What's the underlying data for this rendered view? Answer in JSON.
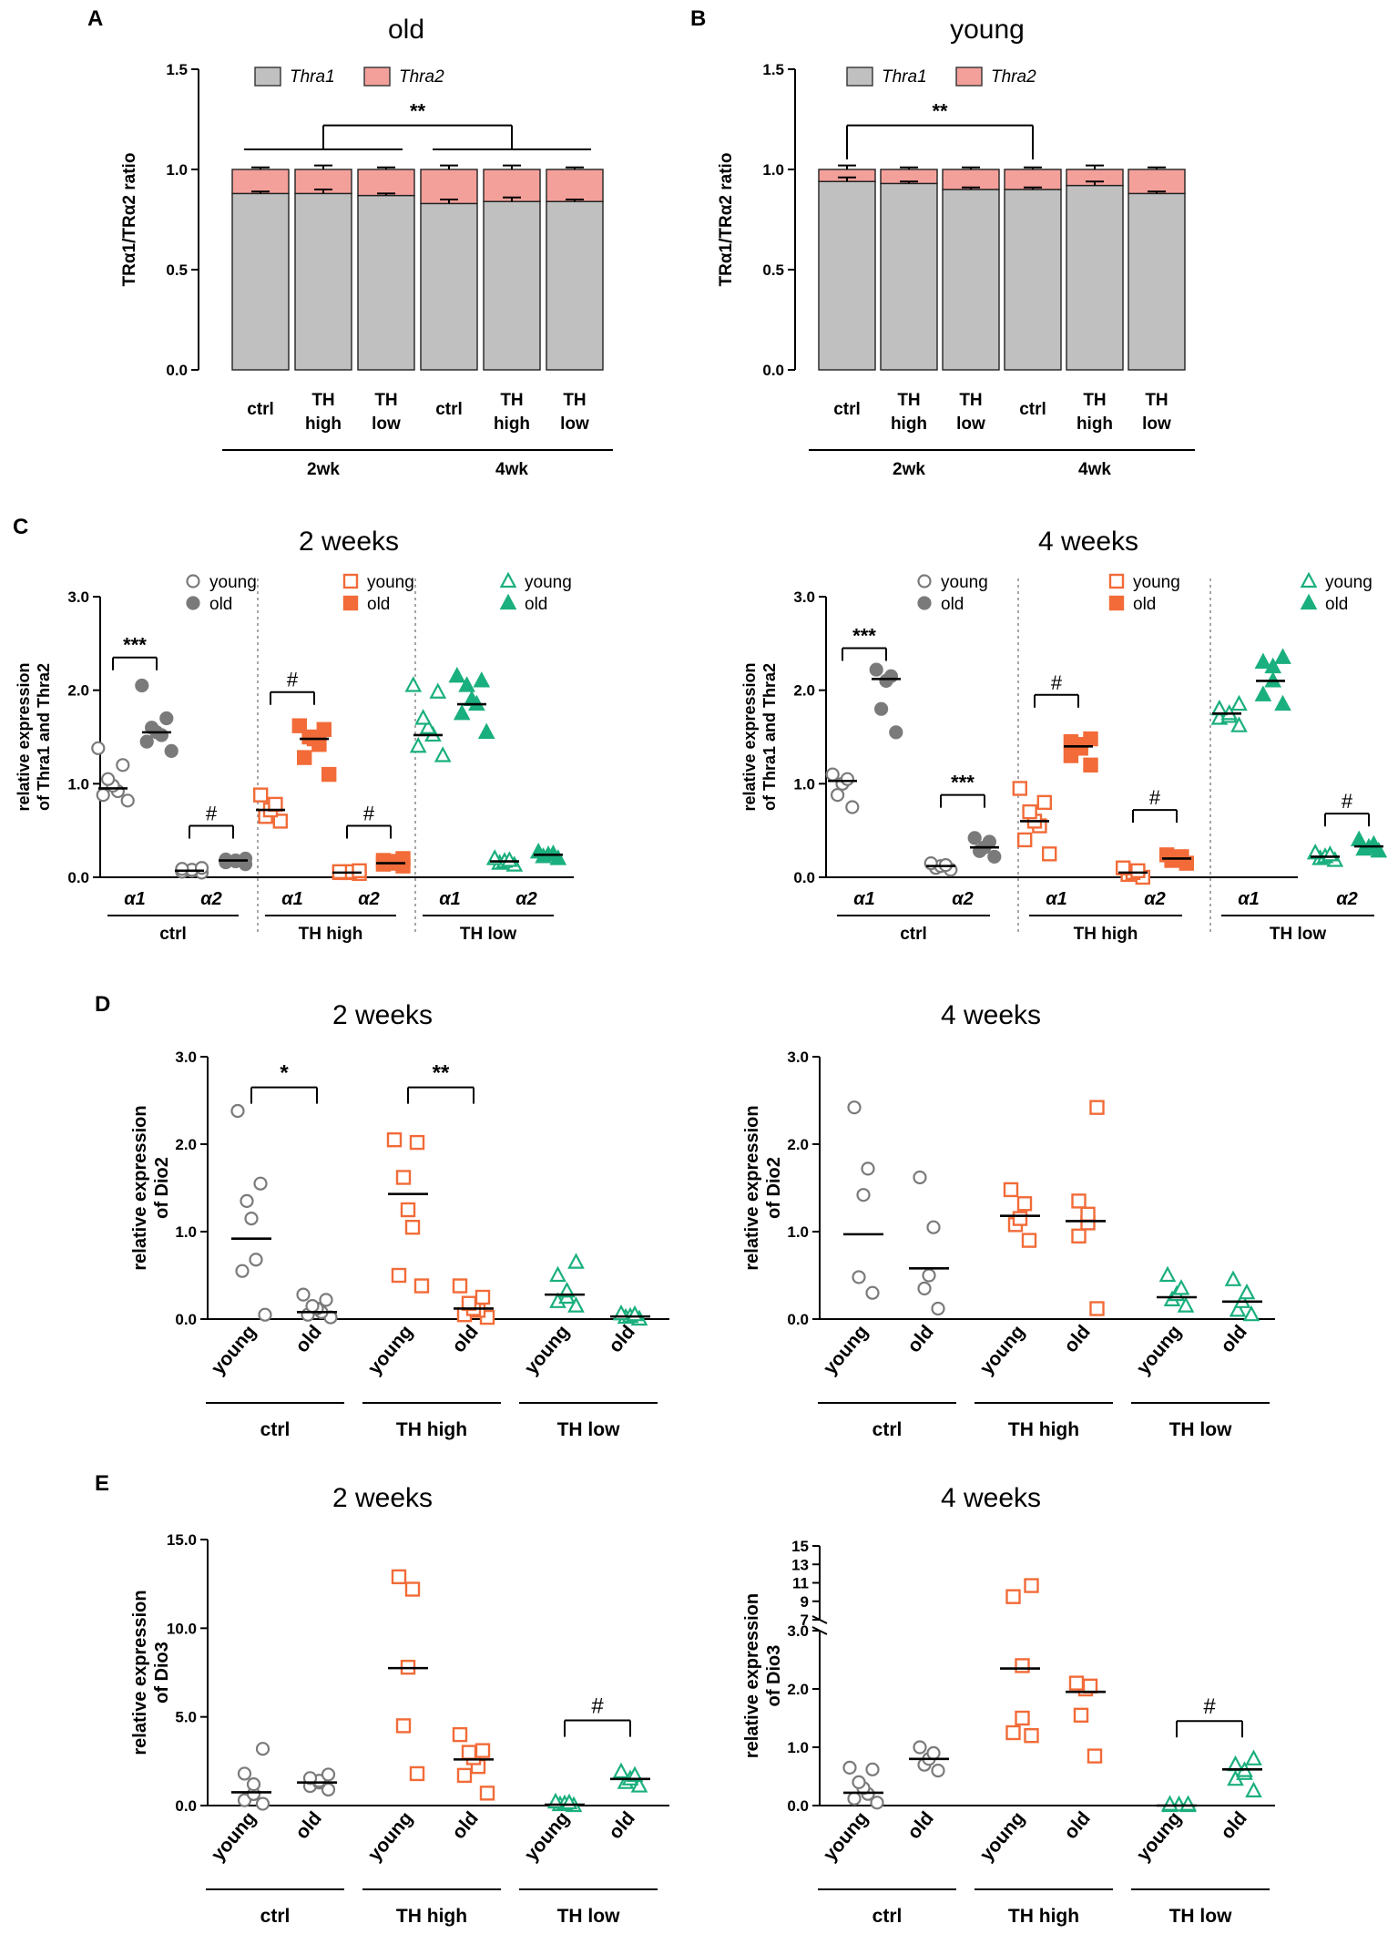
{
  "colors": {
    "grey": "#7a7a7a",
    "orange": "#f26b38",
    "green": "#1aaf7e",
    "thra1": "#c0c0c0",
    "thra2": "#f4a09a",
    "black": "#000000"
  },
  "panels": {
    "A": "A",
    "B": "B",
    "C": "C",
    "D": "D",
    "E": "E"
  },
  "chart_data": [
    {
      "id": "A",
      "type": "bar",
      "stacked": true,
      "title": "old",
      "ylabel": "TRα1/TRα2 ratio",
      "ylim": [
        0,
        1.5
      ],
      "yticks": [
        "0.0",
        "0.5",
        "1.0",
        "1.5"
      ],
      "categories": [
        "ctrl",
        "TH high",
        "TH low",
        "ctrl",
        "TH high",
        "TH low"
      ],
      "groups": [
        "2wk",
        "4wk"
      ],
      "legend": [
        "Thra1",
        "Thra2"
      ],
      "series": [
        {
          "name": "Thra1",
          "values": [
            0.88,
            0.88,
            0.87,
            0.83,
            0.84,
            0.84
          ]
        },
        {
          "name": "Thra2",
          "values": [
            0.12,
            0.12,
            0.13,
            0.17,
            0.16,
            0.16
          ]
        }
      ],
      "errors_thra1": [
        0.01,
        0.02,
        0.01,
        0.02,
        0.02,
        0.01
      ],
      "errors_total": [
        0.01,
        0.02,
        0.01,
        0.02,
        0.02,
        0.01
      ],
      "annotation": "**"
    },
    {
      "id": "B",
      "type": "bar",
      "stacked": true,
      "title": "young",
      "ylabel": "TRα1/TRα2 ratio",
      "ylim": [
        0,
        1.5
      ],
      "yticks": [
        "0.0",
        "0.5",
        "1.0",
        "1.5"
      ],
      "categories": [
        "ctrl",
        "TH high",
        "TH low",
        "ctrl",
        "TH high",
        "TH low"
      ],
      "groups": [
        "2wk",
        "4wk"
      ],
      "legend": [
        "Thra1",
        "Thra2"
      ],
      "series": [
        {
          "name": "Thra1",
          "values": [
            0.94,
            0.93,
            0.9,
            0.9,
            0.92,
            0.88
          ]
        },
        {
          "name": "Thra2",
          "values": [
            0.06,
            0.07,
            0.1,
            0.1,
            0.08,
            0.12
          ]
        }
      ],
      "errors_thra1": [
        0.02,
        0.01,
        0.01,
        0.01,
        0.02,
        0.01
      ],
      "errors_total": [
        0.02,
        0.01,
        0.01,
        0.01,
        0.02,
        0.01
      ],
      "annotation": "**"
    },
    {
      "id": "C-2",
      "type": "scatter",
      "title": "2 weeks",
      "ylabel_lines": [
        "relative expression",
        "of Thra1 and Thra2"
      ],
      "ylim": [
        0,
        3
      ],
      "yticks": [
        "0.0",
        "1.0",
        "2.0",
        "3.0"
      ],
      "groups": [
        "ctrl",
        "TH high",
        "TH low"
      ],
      "xticks": [
        "α1",
        "α2"
      ],
      "legend_young": "young",
      "legend_old": "old",
      "points": [
        {
          "grp": 0,
          "sub": 0,
          "old": false,
          "vals": [
            0.82,
            0.88,
            0.92,
            0.98,
            1.05,
            1.2,
            1.38
          ],
          "median": 0.95
        },
        {
          "grp": 0,
          "sub": 0,
          "old": true,
          "vals": [
            1.35,
            1.45,
            1.52,
            1.55,
            1.6,
            1.7,
            2.05
          ],
          "median": 1.55
        },
        {
          "grp": 0,
          "sub": 1,
          "old": false,
          "vals": [
            0.05,
            0.06,
            0.07,
            0.08,
            0.09,
            0.1
          ],
          "median": 0.07
        },
        {
          "grp": 0,
          "sub": 1,
          "old": true,
          "vals": [
            0.14,
            0.16,
            0.17,
            0.18,
            0.19,
            0.2
          ],
          "median": 0.18
        },
        {
          "grp": 1,
          "sub": 0,
          "old": false,
          "vals": [
            0.6,
            0.65,
            0.72,
            0.78,
            0.88
          ],
          "median": 0.72
        },
        {
          "grp": 1,
          "sub": 0,
          "old": true,
          "vals": [
            1.1,
            1.28,
            1.42,
            1.48,
            1.5,
            1.58,
            1.62
          ],
          "median": 1.48
        },
        {
          "grp": 1,
          "sub": 1,
          "old": false,
          "vals": [
            0.04,
            0.05,
            0.05,
            0.06,
            0.06,
            0.07
          ],
          "median": 0.05
        },
        {
          "grp": 1,
          "sub": 1,
          "old": true,
          "vals": [
            0.12,
            0.14,
            0.15,
            0.17,
            0.18,
            0.2
          ],
          "median": 0.15
        },
        {
          "grp": 2,
          "sub": 0,
          "old": false,
          "vals": [
            1.3,
            1.4,
            1.52,
            1.6,
            1.7,
            1.98,
            2.05
          ],
          "median": 1.52
        },
        {
          "grp": 2,
          "sub": 0,
          "old": true,
          "vals": [
            1.55,
            1.75,
            1.85,
            1.9,
            2.05,
            2.1,
            2.15
          ],
          "median": 1.85
        },
        {
          "grp": 2,
          "sub": 1,
          "old": false,
          "vals": [
            0.13,
            0.15,
            0.17,
            0.18,
            0.2
          ],
          "median": 0.17
        },
        {
          "grp": 2,
          "sub": 1,
          "old": true,
          "vals": [
            0.2,
            0.22,
            0.24,
            0.25,
            0.27
          ],
          "median": 0.24
        }
      ],
      "annotations": [
        {
          "grp": 0,
          "sub": 0,
          "text": "***",
          "y": 2.35
        },
        {
          "grp": 0,
          "sub": 1,
          "text": "#",
          "y": 0.55
        },
        {
          "grp": 1,
          "sub": 0,
          "text": "#",
          "y": 1.98
        },
        {
          "grp": 1,
          "sub": 1,
          "text": "#",
          "y": 0.55
        }
      ]
    },
    {
      "id": "C-4",
      "type": "scatter",
      "title": "4 weeks",
      "ylabel_lines": [
        "relative expression",
        "of Thra1 and Thra2"
      ],
      "ylim": [
        0,
        3
      ],
      "yticks": [
        "0.0",
        "1.0",
        "2.0",
        "3.0"
      ],
      "groups": [
        "ctrl",
        "TH high",
        "TH low"
      ],
      "xticks": [
        "α1",
        "α2"
      ],
      "legend_young": "young",
      "legend_old": "old",
      "points": [
        {
          "grp": 0,
          "sub": 0,
          "old": false,
          "vals": [
            0.75,
            0.88,
            1.0,
            1.05,
            1.1
          ],
          "median": 1.03
        },
        {
          "grp": 0,
          "sub": 0,
          "old": true,
          "vals": [
            1.55,
            1.8,
            2.1,
            2.15,
            2.22
          ],
          "median": 2.12
        },
        {
          "grp": 0,
          "sub": 1,
          "old": false,
          "vals": [
            0.08,
            0.1,
            0.12,
            0.13,
            0.15
          ],
          "median": 0.12
        },
        {
          "grp": 0,
          "sub": 1,
          "old": true,
          "vals": [
            0.22,
            0.28,
            0.32,
            0.38,
            0.42
          ],
          "median": 0.32
        },
        {
          "grp": 1,
          "sub": 0,
          "old": false,
          "vals": [
            0.25,
            0.4,
            0.55,
            0.6,
            0.7,
            0.8,
            0.95
          ],
          "median": 0.6
        },
        {
          "grp": 1,
          "sub": 0,
          "old": true,
          "vals": [
            1.2,
            1.3,
            1.38,
            1.42,
            1.45,
            1.48
          ],
          "median": 1.4
        },
        {
          "grp": 1,
          "sub": 1,
          "old": false,
          "vals": [
            0.0,
            0.03,
            0.05,
            0.07,
            0.1
          ],
          "median": 0.05
        },
        {
          "grp": 1,
          "sub": 1,
          "old": true,
          "vals": [
            0.15,
            0.18,
            0.2,
            0.22,
            0.24
          ],
          "median": 0.2
        },
        {
          "grp": 2,
          "sub": 0,
          "old": false,
          "vals": [
            1.62,
            1.7,
            1.72,
            1.75,
            1.8,
            1.85
          ],
          "median": 1.75
        },
        {
          "grp": 2,
          "sub": 0,
          "old": true,
          "vals": [
            1.85,
            1.95,
            2.1,
            2.25,
            2.3,
            2.35
          ],
          "median": 2.1
        },
        {
          "grp": 2,
          "sub": 1,
          "old": false,
          "vals": [
            0.18,
            0.2,
            0.22,
            0.24,
            0.26
          ],
          "median": 0.22
        },
        {
          "grp": 2,
          "sub": 1,
          "old": true,
          "vals": [
            0.28,
            0.3,
            0.32,
            0.35,
            0.4
          ],
          "median": 0.33
        }
      ],
      "annotations": [
        {
          "grp": 0,
          "sub": 0,
          "text": "***",
          "y": 2.45
        },
        {
          "grp": 0,
          "sub": 1,
          "text": "***",
          "y": 0.88
        },
        {
          "grp": 1,
          "sub": 0,
          "text": "#",
          "y": 1.95
        },
        {
          "grp": 1,
          "sub": 1,
          "text": "#",
          "y": 0.72
        },
        {
          "grp": 2,
          "sub": 1,
          "text": "#",
          "y": 0.68
        }
      ]
    },
    {
      "id": "D-2",
      "type": "scatter",
      "title": "2 weeks",
      "ylabel_lines": [
        "relative expression",
        "of Dio2"
      ],
      "ylim": [
        0,
        3
      ],
      "yticks": [
        "0.0",
        "1.0",
        "2.0",
        "3.0"
      ],
      "groups": [
        "ctrl",
        "TH high",
        "TH low"
      ],
      "xticks": [
        "young",
        "old"
      ],
      "points": [
        {
          "grp": 0,
          "sub": 0,
          "vals": [
            0.05,
            0.55,
            0.68,
            1.15,
            1.35,
            1.55,
            2.38
          ],
          "median": 0.92
        },
        {
          "grp": 0,
          "sub": 1,
          "vals": [
            0.02,
            0.05,
            0.08,
            0.12,
            0.15,
            0.22,
            0.28
          ],
          "median": 0.08
        },
        {
          "grp": 1,
          "sub": 0,
          "vals": [
            0.38,
            0.5,
            1.05,
            1.25,
            1.62,
            2.02,
            2.05
          ],
          "median": 1.43
        },
        {
          "grp": 1,
          "sub": 1,
          "vals": [
            0.02,
            0.05,
            0.1,
            0.12,
            0.18,
            0.25,
            0.38
          ],
          "median": 0.12
        },
        {
          "grp": 2,
          "sub": 0,
          "vals": [
            0.15,
            0.2,
            0.25,
            0.32,
            0.5,
            0.65
          ],
          "median": 0.28
        },
        {
          "grp": 2,
          "sub": 1,
          "vals": [
            0.0,
            0.02,
            0.03,
            0.05,
            0.06
          ],
          "median": 0.03
        }
      ],
      "annotations": [
        {
          "grp": 0,
          "text": "*",
          "y": 2.65
        },
        {
          "grp": 1,
          "text": "**",
          "y": 2.65
        }
      ]
    },
    {
      "id": "D-4",
      "type": "scatter",
      "title": "4 weeks",
      "ylabel_lines": [
        "relative expression",
        "of Dio2"
      ],
      "ylim": [
        0,
        3
      ],
      "yticks": [
        "0.0",
        "1.0",
        "2.0",
        "3.0"
      ],
      "groups": [
        "ctrl",
        "TH high",
        "TH low"
      ],
      "xticks": [
        "young",
        "old"
      ],
      "points": [
        {
          "grp": 0,
          "sub": 0,
          "vals": [
            0.3,
            0.48,
            1.42,
            1.72,
            2.42
          ],
          "median": 0.97
        },
        {
          "grp": 0,
          "sub": 1,
          "vals": [
            0.12,
            0.35,
            0.5,
            1.05,
            1.62
          ],
          "median": 0.58
        },
        {
          "grp": 1,
          "sub": 0,
          "vals": [
            0.9,
            1.08,
            1.15,
            1.32,
            1.48
          ],
          "median": 1.18
        },
        {
          "grp": 1,
          "sub": 1,
          "vals": [
            0.12,
            0.95,
            1.1,
            1.2,
            1.35,
            2.42
          ],
          "median": 1.12
        },
        {
          "grp": 2,
          "sub": 0,
          "vals": [
            0.15,
            0.22,
            0.28,
            0.35,
            0.5
          ],
          "median": 0.25
        },
        {
          "grp": 2,
          "sub": 1,
          "vals": [
            0.05,
            0.1,
            0.2,
            0.3,
            0.45
          ],
          "median": 0.2
        }
      ],
      "annotations": []
    },
    {
      "id": "E-2",
      "type": "scatter",
      "title": "2 weeks",
      "ylabel_lines": [
        "relative expression",
        "of Dio3"
      ],
      "ylim": [
        0,
        15
      ],
      "yticks": [
        "0.0",
        "5.0",
        "10.0",
        "15.0"
      ],
      "groups": [
        "ctrl",
        "TH high",
        "TH low"
      ],
      "xticks": [
        "young",
        "old"
      ],
      "points": [
        {
          "grp": 0,
          "sub": 0,
          "vals": [
            0.1,
            0.3,
            0.65,
            1.2,
            1.8,
            3.2
          ],
          "median": 0.75
        },
        {
          "grp": 0,
          "sub": 1,
          "vals": [
            0.9,
            1.1,
            1.3,
            1.4,
            1.55,
            1.75
          ],
          "median": 1.3
        },
        {
          "grp": 1,
          "sub": 0,
          "vals": [
            1.8,
            4.5,
            7.8,
            12.2,
            12.9
          ],
          "median": 7.75
        },
        {
          "grp": 1,
          "sub": 1,
          "vals": [
            0.7,
            1.7,
            2.2,
            2.7,
            3.0,
            3.1,
            4.0
          ],
          "median": 2.6
        },
        {
          "grp": 2,
          "sub": 0,
          "vals": [
            0.0,
            0.05,
            0.1,
            0.15,
            0.2
          ],
          "median": 0.05
        },
        {
          "grp": 2,
          "sub": 1,
          "vals": [
            1.1,
            1.3,
            1.5,
            1.7,
            1.9
          ],
          "median": 1.5
        }
      ],
      "annotations": [
        {
          "grp": 2,
          "text": "#",
          "y": 4.8
        }
      ]
    },
    {
      "id": "E-4",
      "type": "scatter",
      "title": "4 weeks",
      "ylabel_lines": [
        "relative expression",
        "of Dio3"
      ],
      "ylim": [
        0,
        15
      ],
      "axis_break": [
        3,
        7
      ],
      "yticks_lower": [
        "0.0",
        "1.0",
        "2.0",
        "3.0"
      ],
      "yticks_upper": [
        "7",
        "9",
        "11",
        "13",
        "15"
      ],
      "groups": [
        "ctrl",
        "TH high",
        "TH low"
      ],
      "xticks": [
        "young",
        "old"
      ],
      "points": [
        {
          "grp": 0,
          "sub": 0,
          "vals": [
            0.05,
            0.12,
            0.2,
            0.3,
            0.4,
            0.62,
            0.65
          ],
          "median": 0.22
        },
        {
          "grp": 0,
          "sub": 1,
          "vals": [
            0.6,
            0.7,
            0.8,
            0.9,
            1.0
          ],
          "median": 0.8
        },
        {
          "grp": 1,
          "sub": 0,
          "vals": [
            1.2,
            1.25,
            1.5,
            2.4,
            9.5,
            10.7
          ],
          "median": 2.35
        },
        {
          "grp": 1,
          "sub": 1,
          "vals": [
            0.85,
            1.55,
            2.0,
            2.05,
            2.1
          ],
          "median": 1.95
        },
        {
          "grp": 2,
          "sub": 0,
          "vals": [
            0.0,
            0.0,
            0.01,
            0.01,
            0.02,
            0.02
          ],
          "median": 0.0
        },
        {
          "grp": 2,
          "sub": 1,
          "vals": [
            0.25,
            0.45,
            0.55,
            0.6,
            0.7,
            0.8
          ],
          "median": 0.62
        }
      ],
      "annotations": [
        {
          "grp": 2,
          "text": "#",
          "y": 1.45
        }
      ]
    }
  ]
}
